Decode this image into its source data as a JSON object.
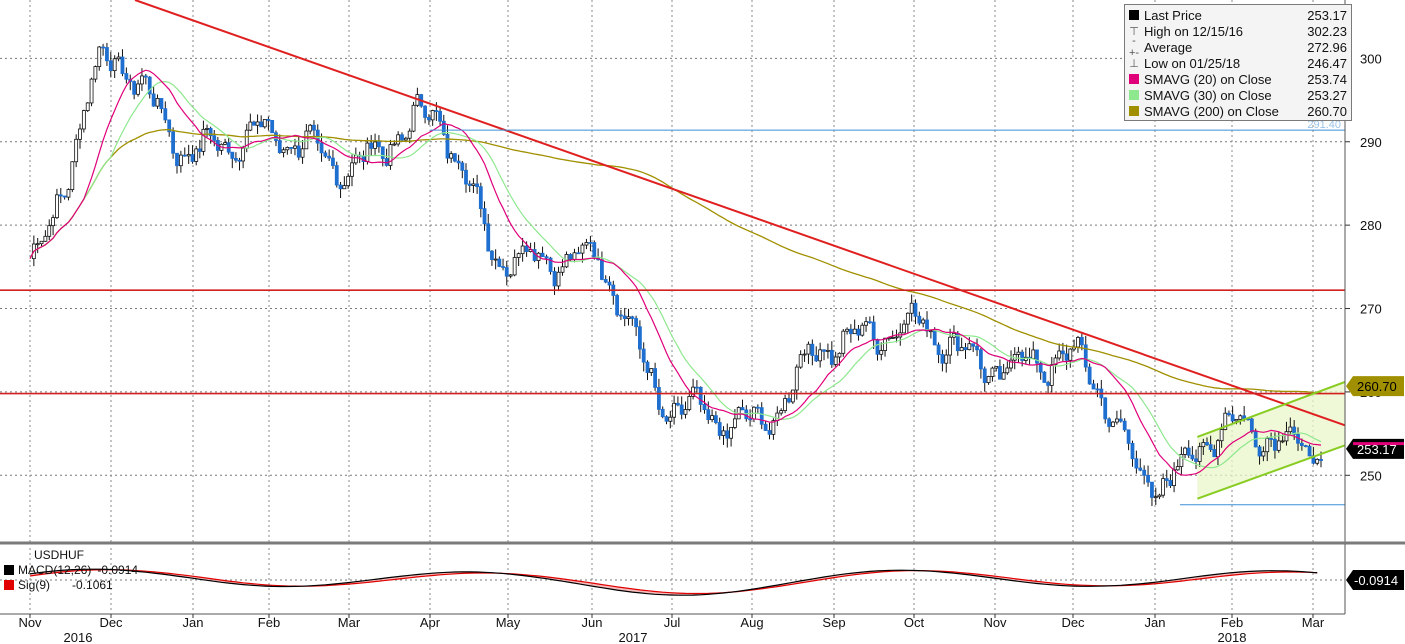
{
  "chart_data": {
    "type": "line",
    "symbol": "USDHUF",
    "x_labels": [
      "Nov",
      "Dec",
      "Jan",
      "Feb",
      "Mar",
      "Apr",
      "May",
      "Jun",
      "Jul",
      "Aug",
      "Sep",
      "Oct",
      "Nov",
      "Dec",
      "Jan",
      "Feb",
      "Mar"
    ],
    "year_labels": [
      "2016",
      "2017",
      "2018"
    ],
    "y_ticks": [
      250,
      260,
      270,
      280,
      290,
      300
    ],
    "ylim": [
      242,
      307
    ],
    "grid": true,
    "legend_position": "top-right",
    "legend": [
      {
        "label": "Last Price",
        "value": "253.17",
        "color": "#000000",
        "icon": "square"
      },
      {
        "label": "High on 12/15/16",
        "value": "302.23",
        "color": "#555555",
        "icon": "high-marker-icon"
      },
      {
        "label": "Average",
        "value": "272.96",
        "color": "#888888",
        "icon": "average-marker-icon"
      },
      {
        "label": "Low on 01/25/18",
        "value": "246.47",
        "color": "#555555",
        "icon": "low-marker-icon"
      },
      {
        "label": "SMAVG (20) on Close",
        "value": "253.74",
        "color": "#e0007a",
        "icon": "square"
      },
      {
        "label": "SMAVG (30) on Close",
        "value": "253.27",
        "color": "#8ee88e",
        "icon": "square"
      },
      {
        "label": "SMAVG (200) on Close",
        "value": "260.70",
        "color": "#a09000",
        "icon": "square"
      }
    ],
    "price_tags": [
      {
        "label": "260.70",
        "value": 260.7,
        "bg": "#a09000",
        "fg": "#000000"
      },
      {
        "label": "253.17",
        "value": 253.17,
        "bg": "#000000",
        "fg": "#ffffff"
      }
    ],
    "hline_label": "291.40",
    "series": {
      "close_monthly": [
        {
          "x": "Nov 2016",
          "y": 276
        },
        {
          "x": "Dec 2016",
          "y": 300
        },
        {
          "x": "Jan 2017",
          "y": 289
        },
        {
          "x": "Feb 2017",
          "y": 291
        },
        {
          "x": "Mar 2017",
          "y": 287
        },
        {
          "x": "Apr 2017",
          "y": 293
        },
        {
          "x": "May 2017",
          "y": 276
        },
        {
          "x": "Jun 2017",
          "y": 276
        },
        {
          "x": "Jul 2017",
          "y": 258
        },
        {
          "x": "Aug 2017",
          "y": 256
        },
        {
          "x": "Sep 2017",
          "y": 266
        },
        {
          "x": "Oct 2017",
          "y": 268
        },
        {
          "x": "Nov 2017",
          "y": 263
        },
        {
          "x": "Dec 2017",
          "y": 264
        },
        {
          "x": "Jan 2018",
          "y": 249
        },
        {
          "x": "Feb 2018",
          "y": 256
        },
        {
          "x": "Mar 2018",
          "y": 253.17
        }
      ]
    },
    "annotations": [
      {
        "type": "trendline",
        "color": "#e02020",
        "from": {
          "x": "Nov 2016",
          "y": 307
        },
        "to": {
          "x": "Mar 2018",
          "y": 256
        }
      },
      {
        "type": "hline",
        "color": "#d02020",
        "y": 272.2
      },
      {
        "type": "hline",
        "color": "#d02020",
        "y": 259.8
      },
      {
        "type": "hline",
        "color": "#3a8fd8",
        "y": 291.4
      },
      {
        "type": "hline",
        "color": "#3a8fd8",
        "y": 246.47
      },
      {
        "type": "channel",
        "color": "#88cc22"
      }
    ],
    "macd": {
      "title": "USDHUF",
      "macd_label": "MACD(12,26)",
      "macd_value": "-0.0914",
      "sig_label": "Sig(9)",
      "sig_value": "-0.1061",
      "tag": "-0.0914",
      "macd_color": "#000000",
      "sig_color": "#e00000"
    }
  }
}
